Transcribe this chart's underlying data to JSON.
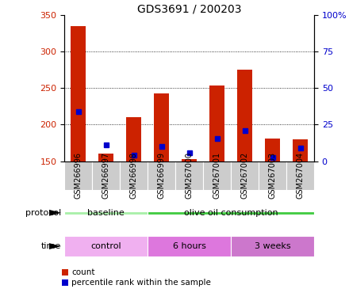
{
  "title": "GDS3691 / 200203",
  "samples": [
    "GSM266996",
    "GSM266997",
    "GSM266998",
    "GSM266999",
    "GSM267000",
    "GSM267001",
    "GSM267002",
    "GSM267003",
    "GSM267004"
  ],
  "count_values": [
    335,
    160,
    210,
    243,
    153,
    254,
    275,
    181,
    180
  ],
  "percentile_values": [
    218,
    172,
    158,
    170,
    161,
    181,
    192,
    155,
    168
  ],
  "bar_bottom": 150,
  "ylim": [
    150,
    350
  ],
  "y2lim": [
    0,
    100
  ],
  "yticks": [
    150,
    200,
    250,
    300,
    350
  ],
  "y2ticks": [
    0,
    25,
    50,
    75,
    100
  ],
  "count_color": "#cc2200",
  "percentile_color": "#0000cc",
  "protocol_groups": [
    {
      "label": "baseline",
      "start": 0,
      "end": 3,
      "color": "#aaf0aa"
    },
    {
      "label": "olive oil consumption",
      "start": 3,
      "end": 9,
      "color": "#44cc44"
    }
  ],
  "time_groups": [
    {
      "label": "control",
      "start": 0,
      "end": 3,
      "color": "#f0b0f0"
    },
    {
      "label": "6 hours",
      "start": 3,
      "end": 6,
      "color": "#dd77dd"
    },
    {
      "label": "3 weeks",
      "start": 6,
      "end": 9,
      "color": "#cc77cc"
    }
  ],
  "legend_count_label": "count",
  "legend_percentile_label": "percentile rank within the sample",
  "bar_width": 0.55,
  "background_color": "#ffffff",
  "sample_box_color": "#cccccc",
  "title_fontsize": 10,
  "axis_fontsize": 8,
  "sample_fontsize": 7,
  "annotation_fontsize": 8
}
